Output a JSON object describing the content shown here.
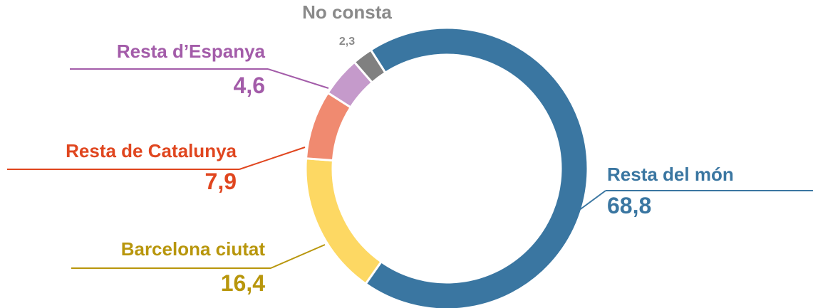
{
  "chart_data": {
    "type": "donut",
    "categories": [
      "Resta del món",
      "Barcelona ciutat",
      "Resta de Catalunya",
      "Resta d’Espanya",
      "No consta"
    ],
    "values": [
      68.8,
      16.4,
      7.9,
      4.6,
      2.3
    ],
    "value_labels": [
      "68,8",
      "16,4",
      "7,9",
      "4,6",
      "2,3"
    ],
    "colors": [
      "#3a76a1",
      "#fdd863",
      "#f08a70",
      "#c59acb",
      "#808080"
    ],
    "label_colors": [
      "#3a76a1",
      "#b8960c",
      "#e0461f",
      "#a35ca9",
      "#8a8a8a"
    ]
  }
}
